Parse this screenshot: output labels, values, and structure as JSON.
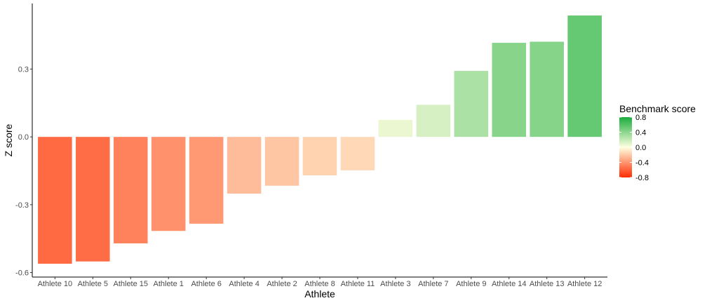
{
  "chart_data": {
    "type": "bar",
    "xlabel": "Athlete",
    "ylabel": "Z score",
    "categories": [
      "Athlete 10",
      "Athlete 5",
      "Athlete 15",
      "Athlete 1",
      "Athlete 6",
      "Athlete 4",
      "Athlete 2",
      "Athlete 8",
      "Athlete 11",
      "Athlete 3",
      "Athlete 7",
      "Athlete 9",
      "Athlete 14",
      "Athlete 13",
      "Athlete 12"
    ],
    "values": [
      -0.561,
      -0.551,
      -0.471,
      -0.416,
      -0.384,
      -0.251,
      -0.216,
      -0.17,
      -0.148,
      0.075,
      0.142,
      0.292,
      0.416,
      0.421,
      0.537
    ],
    "ylim": [
      -0.62,
      0.59
    ],
    "yticks": [
      -0.6,
      -0.3,
      0.0,
      0.3
    ],
    "ytick_labels": [
      "-0.6",
      "-0.3",
      "0.0",
      "0.3"
    ],
    "grid": false,
    "legend": {
      "title": "Benchmark score",
      "placement": "right",
      "labels": [
        "0.8",
        "0.4",
        "0.0",
        "-0.4",
        "-0.8"
      ],
      "range": [
        -0.8,
        0.8
      ],
      "colors": {
        "low": "#ff2b00",
        "mid": "#ffffe0",
        "high": "#1aad3c"
      }
    }
  }
}
